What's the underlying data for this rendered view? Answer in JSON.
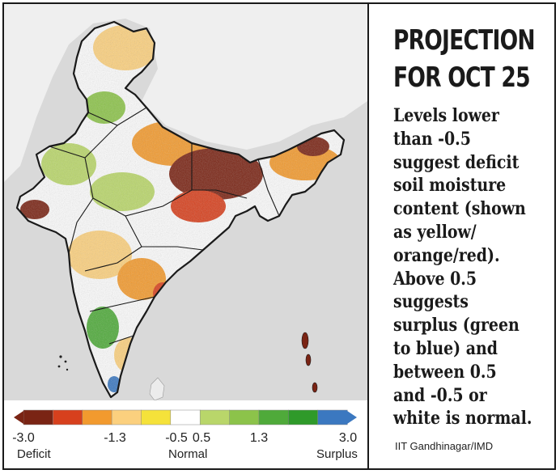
{
  "headline": {
    "line_1": "PROJECTION",
    "line_2": "FOR OCT 25"
  },
  "description_lines": [
    "Levels lower",
    "than -0.5",
    "suggest deficit",
    "soil moisture",
    "content (shown",
    "as yellow/",
    "orange/red).",
    "Above 0.5",
    "suggests",
    "surplus (green",
    "to blue) and",
    "between 0.5",
    "and -0.5 or",
    "white is normal."
  ],
  "credit": "IIT Gandhinagar/IMD",
  "map": {
    "subject": "India soil moisture anomaly projection",
    "sea_color": "#d9d9d9",
    "land_color": "#fbfbfb",
    "border_color": "#1a1a1a"
  },
  "legend": {
    "bins": [
      {
        "color": "#7a2414"
      },
      {
        "color": "#d7401d"
      },
      {
        "color": "#f29a2e"
      },
      {
        "color": "#fbd07e"
      },
      {
        "color": "#f5e23a"
      },
      {
        "color": "#ffffff"
      },
      {
        "color": "#b9d66a"
      },
      {
        "color": "#8cc34a"
      },
      {
        "color": "#4faa3a"
      },
      {
        "color": "#2f9a2a"
      },
      {
        "color": "#3b78c0"
      }
    ],
    "ticks": [
      "-3.0",
      "-1.3",
      "-0.5",
      "0.5",
      "1.3",
      "3.0"
    ],
    "classes": {
      "low": "Deficit",
      "mid": "Normal",
      "high": "Surplus"
    }
  }
}
